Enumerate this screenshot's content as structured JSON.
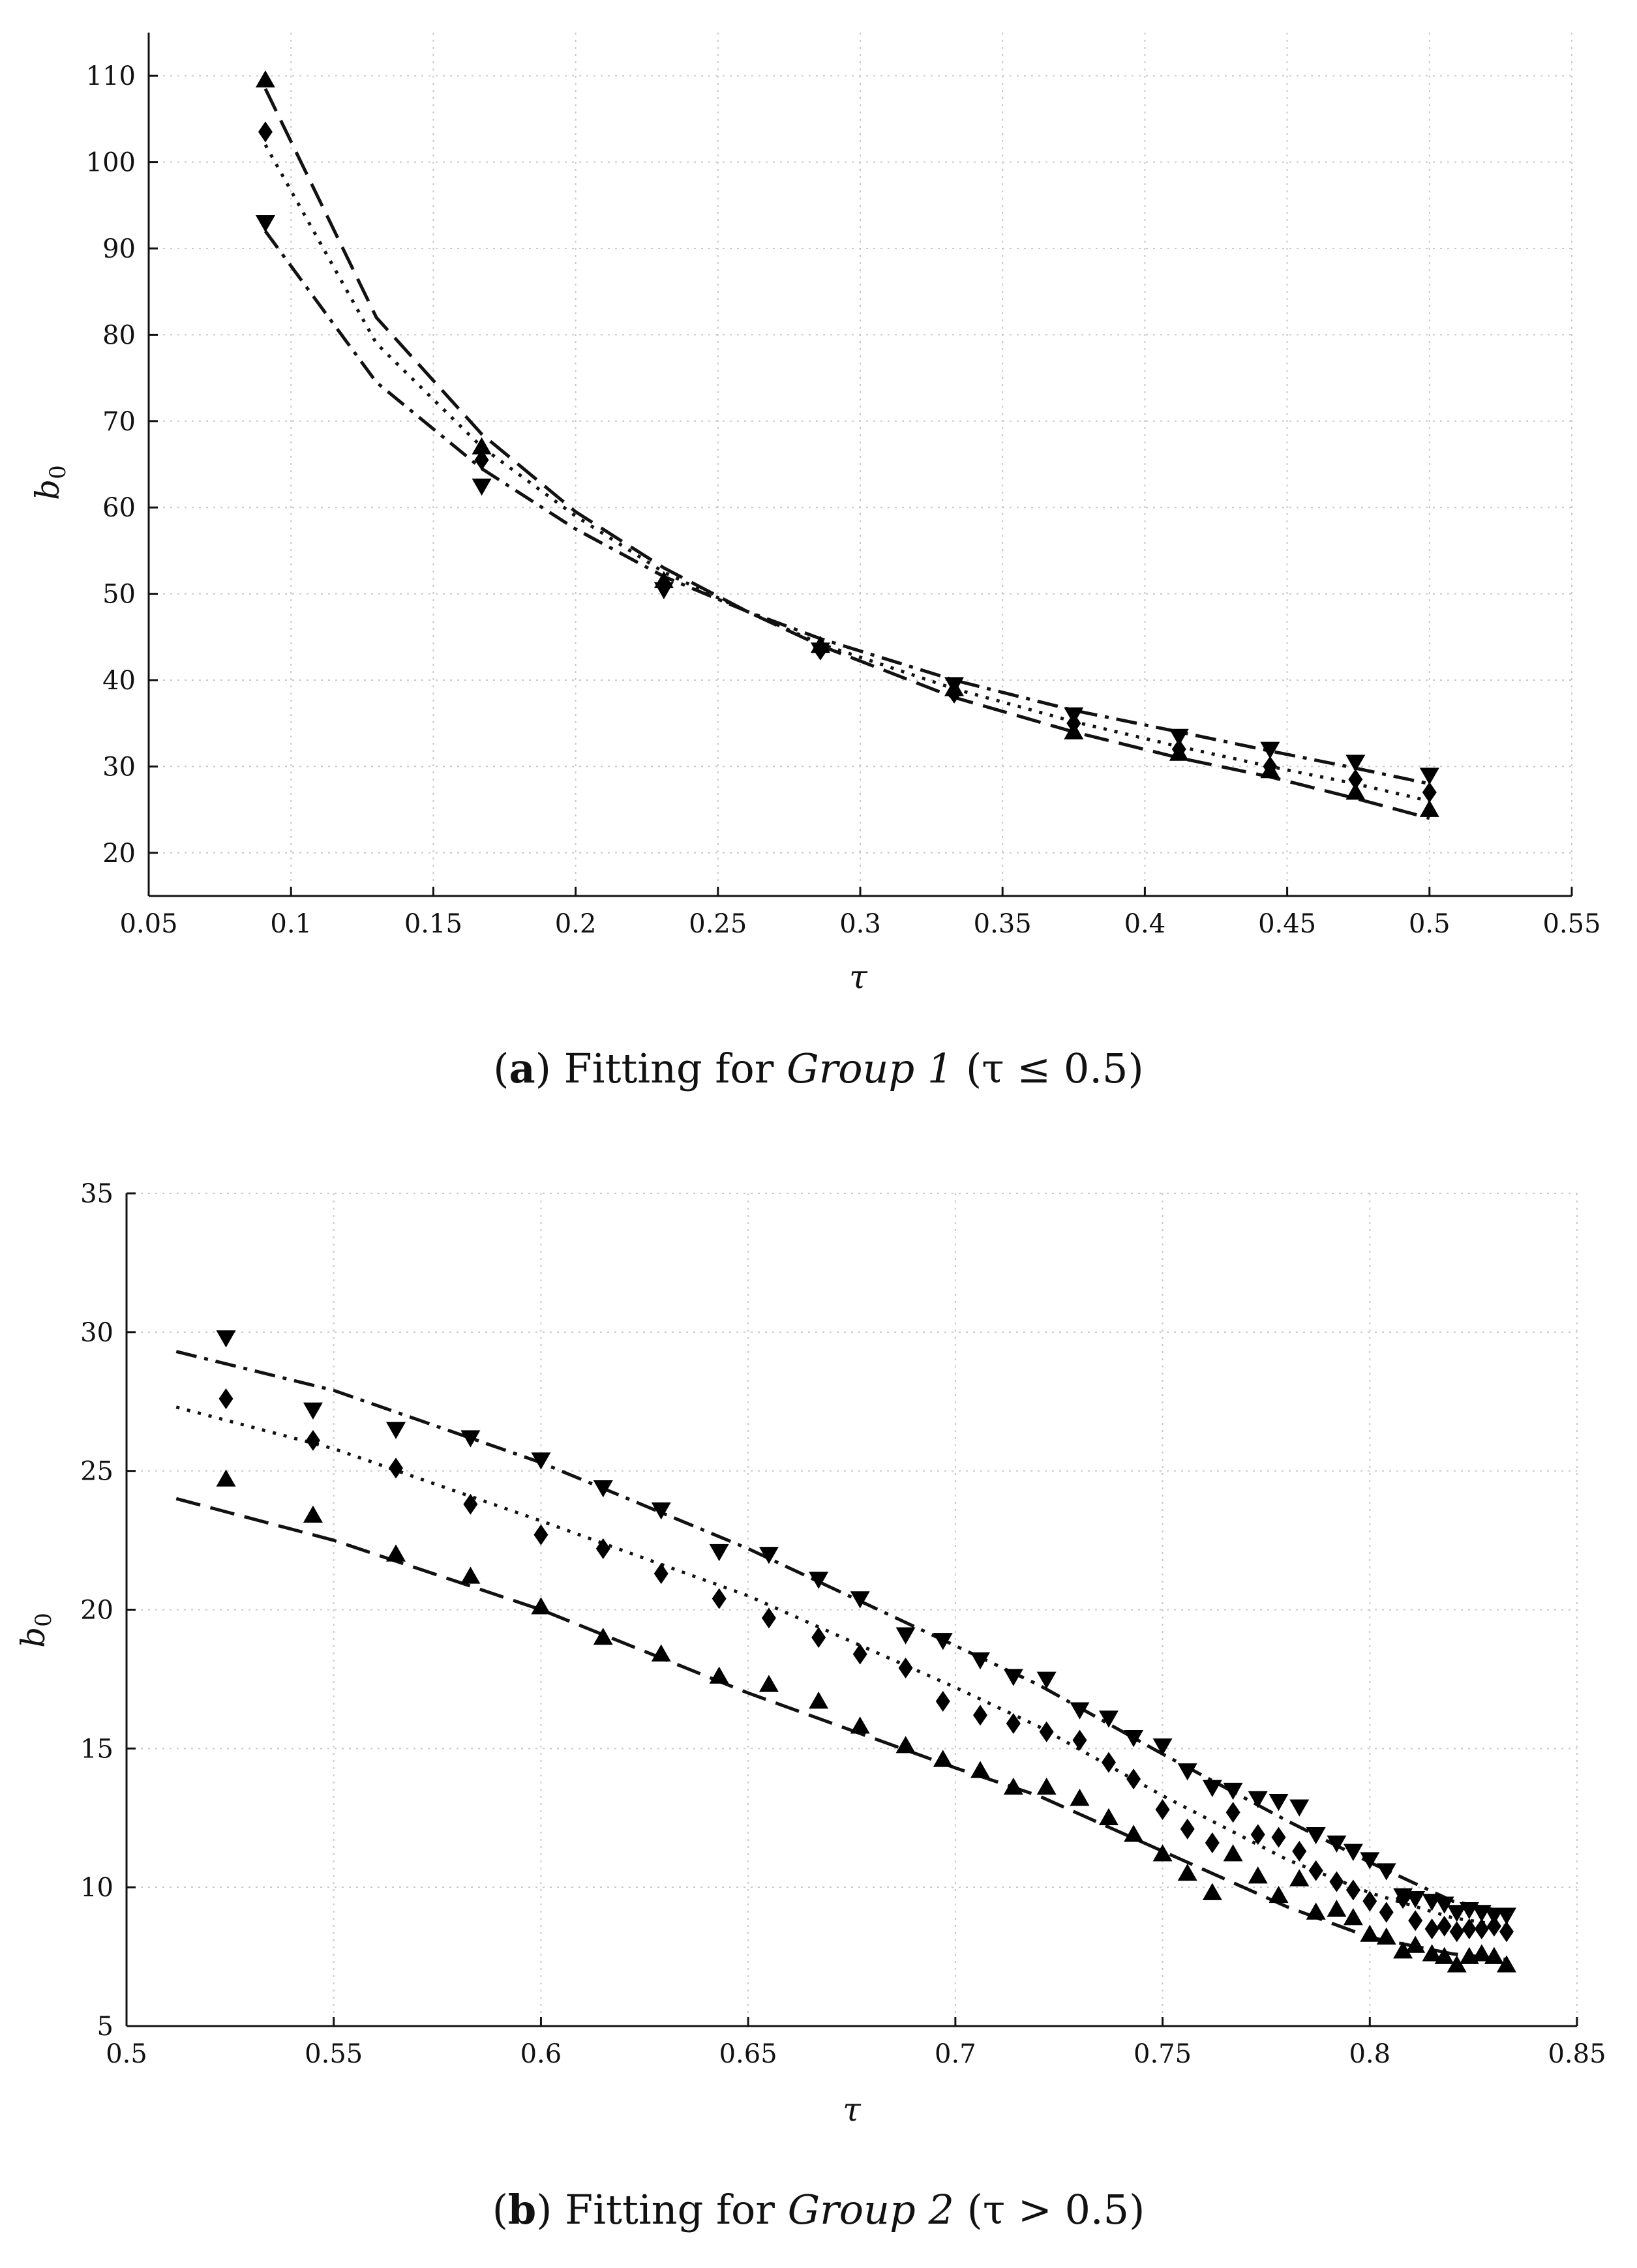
{
  "chart_data": [
    {
      "type": "scatter",
      "panel_label": "a",
      "caption_text": "Fitting for",
      "caption_group": "Group 1",
      "caption_condition": "(τ ≤ 0.5)",
      "xlabel": "τ",
      "ylabel": "b",
      "ylabel_sub": "0",
      "xlim": [
        0.05,
        0.55
      ],
      "ylim": [
        15,
        115
      ],
      "xticks": [
        0.05,
        0.1,
        0.15,
        0.2,
        0.25,
        0.3,
        0.35,
        0.4,
        0.45,
        0.5,
        0.55
      ],
      "xtick_labels": [
        "0.05",
        "0.1",
        "0.15",
        "0.2",
        "0.25",
        "0.3",
        "0.35",
        "0.4",
        "0.45",
        "0.5",
        "0.55"
      ],
      "yticks": [
        20,
        30,
        40,
        50,
        60,
        70,
        80,
        90,
        100,
        110
      ],
      "ytick_labels": [
        "20",
        "30",
        "40",
        "50",
        "60",
        "70",
        "80",
        "90",
        "100",
        "110"
      ],
      "grid": true,
      "series": [
        {
          "name": "upward-triangle series",
          "marker": "triangle-up",
          "line_style": "dashed",
          "x": [
            0.091,
            0.167,
            0.231,
            0.286,
            0.333,
            0.375,
            0.412,
            0.444,
            0.474,
            0.5
          ],
          "y": [
            109.5,
            67.0,
            51.5,
            44.0,
            39.0,
            34.0,
            31.5,
            29.5,
            27.0,
            25.0
          ],
          "fit_x": [
            0.091,
            0.13,
            0.167,
            0.2,
            0.231,
            0.26,
            0.286,
            0.333,
            0.375,
            0.412,
            0.444,
            0.474,
            0.5
          ],
          "fit_y": [
            108.5,
            82.0,
            68.5,
            59.5,
            53.0,
            48.0,
            44.0,
            38.0,
            34.0,
            31.0,
            28.8,
            26.3,
            24.0
          ]
        },
        {
          "name": "diamond series",
          "marker": "diamond",
          "line_style": "dotted",
          "x": [
            0.091,
            0.167,
            0.231,
            0.286,
            0.333,
            0.375,
            0.412,
            0.444,
            0.474,
            0.5
          ],
          "y": [
            103.5,
            65.5,
            51.0,
            43.5,
            38.5,
            35.0,
            32.0,
            30.0,
            28.5,
            27.0
          ],
          "fit_x": [
            0.091,
            0.13,
            0.167,
            0.2,
            0.231,
            0.26,
            0.286,
            0.333,
            0.375,
            0.412,
            0.444,
            0.474,
            0.5
          ],
          "fit_y": [
            102.0,
            79.0,
            67.0,
            59.0,
            52.5,
            48.0,
            44.2,
            39.0,
            35.2,
            32.3,
            30.0,
            28.0,
            26.0
          ]
        },
        {
          "name": "downward-triangle series",
          "marker": "triangle-down",
          "line_style": "dash-dot",
          "x": [
            0.091,
            0.167,
            0.231,
            0.286,
            0.333,
            0.375,
            0.412,
            0.444,
            0.474,
            0.5
          ],
          "y": [
            93.0,
            62.5,
            50.5,
            43.5,
            39.5,
            36.0,
            33.5,
            32.0,
            30.5,
            29.0
          ],
          "fit_x": [
            0.091,
            0.13,
            0.167,
            0.2,
            0.231,
            0.26,
            0.286,
            0.333,
            0.375,
            0.412,
            0.444,
            0.474,
            0.5
          ],
          "fit_y": [
            92.0,
            74.5,
            64.5,
            57.5,
            52.0,
            48.0,
            44.8,
            40.0,
            36.5,
            34.0,
            31.8,
            29.8,
            28.0
          ]
        }
      ]
    },
    {
      "type": "scatter",
      "panel_label": "b",
      "caption_text": "Fitting for",
      "caption_group": "Group 2",
      "caption_condition": "(τ > 0.5)",
      "xlabel": "τ",
      "ylabel": "b",
      "ylabel_sub": "0",
      "xlim": [
        0.5,
        0.85
      ],
      "ylim": [
        5,
        35
      ],
      "xticks": [
        0.5,
        0.55,
        0.6,
        0.65,
        0.7,
        0.75,
        0.8,
        0.85
      ],
      "xtick_labels": [
        "0.5",
        "0.55",
        "0.6",
        "0.65",
        "0.7",
        "0.75",
        "0.8",
        "0.85"
      ],
      "yticks": [
        5,
        10,
        15,
        20,
        25,
        30,
        35
      ],
      "ytick_labels": [
        "5",
        "10",
        "15",
        "20",
        "25",
        "30",
        "35"
      ],
      "grid": true,
      "series": [
        {
          "name": "upward-triangle series",
          "marker": "triangle-up",
          "line_style": "dashed",
          "x": [
            0.524,
            0.545,
            0.565,
            0.583,
            0.6,
            0.615,
            0.629,
            0.643,
            0.655,
            0.667,
            0.677,
            0.688,
            0.697,
            0.706,
            0.714,
            0.722,
            0.73,
            0.737,
            0.743,
            0.75,
            0.756,
            0.762,
            0.767,
            0.773,
            0.778,
            0.783,
            0.787,
            0.792,
            0.796,
            0.8,
            0.804,
            0.808,
            0.811,
            0.815,
            0.818,
            0.821,
            0.824,
            0.827,
            0.83,
            0.833
          ],
          "y": [
            24.7,
            23.4,
            22.0,
            21.2,
            20.1,
            19.0,
            18.4,
            17.6,
            17.3,
            16.7,
            15.8,
            15.1,
            14.6,
            14.2,
            13.6,
            13.6,
            13.2,
            12.5,
            11.9,
            11.2,
            10.5,
            9.8,
            11.2,
            10.4,
            9.7,
            10.3,
            9.1,
            9.2,
            8.9,
            8.3,
            8.2,
            7.7,
            7.9,
            7.6,
            7.5,
            7.2,
            7.5,
            7.6,
            7.5,
            7.2
          ],
          "fit_x": [
            0.512,
            0.55,
            0.6,
            0.65,
            0.7,
            0.72,
            0.75,
            0.78,
            0.8,
            0.82,
            0.833
          ],
          "fit_y": [
            24.0,
            22.5,
            20.0,
            17.0,
            14.3,
            13.3,
            11.3,
            9.3,
            8.2,
            7.6,
            7.4
          ]
        },
        {
          "name": "diamond series",
          "marker": "diamond",
          "line_style": "dotted",
          "x": [
            0.524,
            0.545,
            0.565,
            0.583,
            0.6,
            0.615,
            0.629,
            0.643,
            0.655,
            0.667,
            0.677,
            0.688,
            0.697,
            0.706,
            0.714,
            0.722,
            0.73,
            0.737,
            0.743,
            0.75,
            0.756,
            0.762,
            0.767,
            0.773,
            0.778,
            0.783,
            0.787,
            0.792,
            0.796,
            0.8,
            0.804,
            0.808,
            0.811,
            0.815,
            0.818,
            0.821,
            0.824,
            0.827,
            0.83,
            0.833
          ],
          "y": [
            27.6,
            26.1,
            25.1,
            23.8,
            22.7,
            22.2,
            21.3,
            20.4,
            19.7,
            19.0,
            18.4,
            17.9,
            16.7,
            16.2,
            15.9,
            15.6,
            15.3,
            14.5,
            13.9,
            12.8,
            12.1,
            11.6,
            12.7,
            11.9,
            11.8,
            11.3,
            10.6,
            10.2,
            9.9,
            9.5,
            9.1,
            9.6,
            8.8,
            8.5,
            8.6,
            8.4,
            8.5,
            8.5,
            8.6,
            8.4
          ],
          "fit_x": [
            0.512,
            0.55,
            0.6,
            0.65,
            0.7,
            0.72,
            0.75,
            0.78,
            0.8,
            0.82,
            0.833
          ],
          "fit_y": [
            27.3,
            25.8,
            23.2,
            20.5,
            17.2,
            15.8,
            13.3,
            11.0,
            9.8,
            8.9,
            8.6
          ]
        },
        {
          "name": "downward-triangle series",
          "marker": "triangle-down",
          "line_style": "dash-dot",
          "x": [
            0.524,
            0.545,
            0.565,
            0.583,
            0.6,
            0.615,
            0.629,
            0.643,
            0.655,
            0.667,
            0.677,
            0.688,
            0.697,
            0.706,
            0.714,
            0.722,
            0.73,
            0.737,
            0.743,
            0.75,
            0.756,
            0.762,
            0.767,
            0.773,
            0.778,
            0.783,
            0.787,
            0.792,
            0.796,
            0.8,
            0.804,
            0.808,
            0.811,
            0.815,
            0.818,
            0.821,
            0.824,
            0.827,
            0.83,
            0.833
          ],
          "y": [
            29.8,
            27.2,
            26.5,
            26.2,
            25.4,
            24.4,
            23.6,
            22.1,
            22.0,
            21.1,
            20.4,
            19.1,
            18.9,
            18.2,
            17.6,
            17.5,
            16.4,
            16.1,
            15.4,
            15.1,
            14.2,
            13.6,
            13.5,
            13.2,
            13.1,
            12.9,
            11.9,
            11.6,
            11.3,
            11.0,
            10.6,
            9.7,
            9.6,
            9.5,
            9.4,
            9.1,
            9.2,
            9.1,
            9.0,
            9.0
          ],
          "fit_x": [
            0.512,
            0.55,
            0.6,
            0.65,
            0.7,
            0.72,
            0.75,
            0.78,
            0.8,
            0.82,
            0.833
          ],
          "fit_y": [
            29.3,
            27.9,
            25.3,
            22.2,
            18.7,
            17.3,
            14.8,
            12.4,
            10.9,
            9.5,
            9.1
          ]
        }
      ]
    }
  ]
}
